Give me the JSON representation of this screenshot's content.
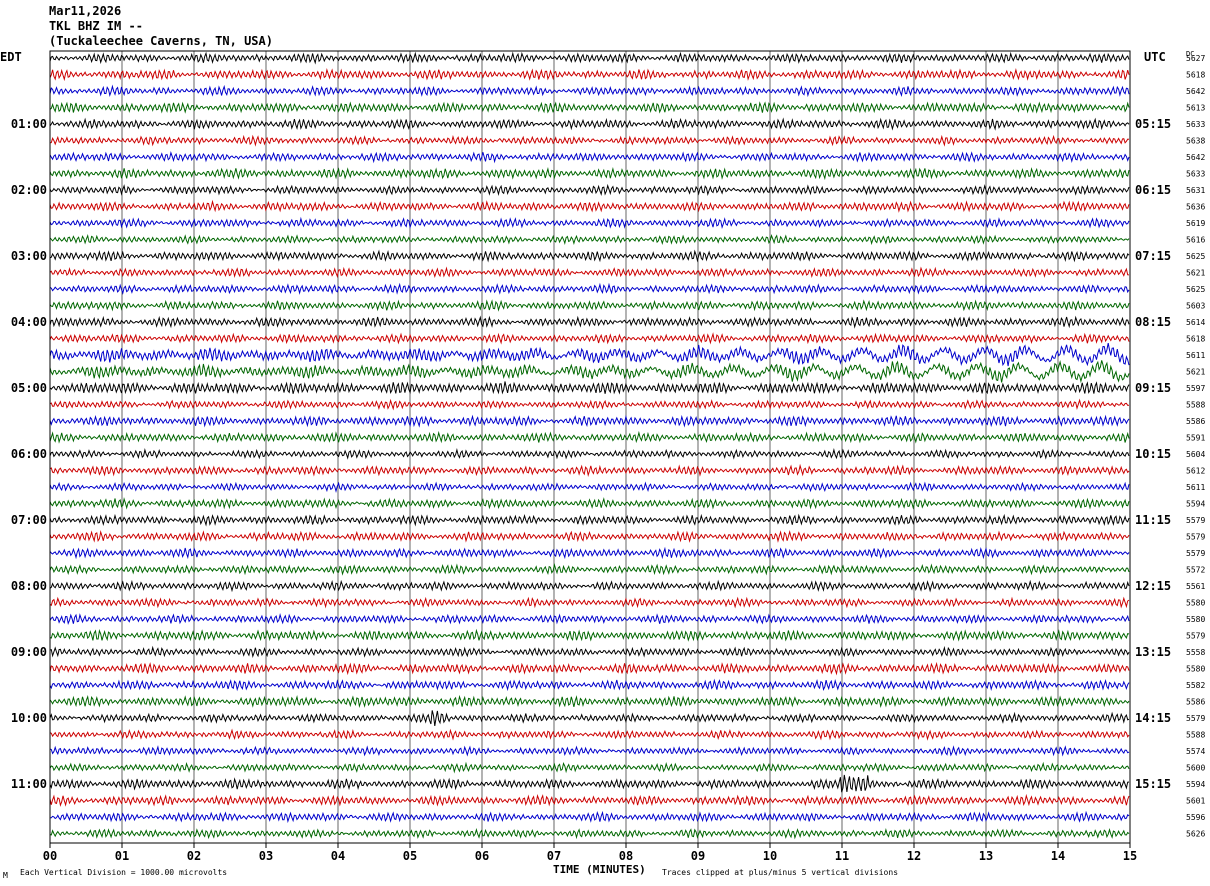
{
  "header": {
    "date": "Mar11,2026",
    "station": "TKL BHZ IM --",
    "location": "(Tuckaleechee Caverns, TN, USA)"
  },
  "left_zone": "EDT",
  "right_zone": "UTC",
  "dc_label": "DC",
  "footer": {
    "scale_note": "Each Vertical Division = 1000.00 microvolts",
    "xlabel": "TIME (MINUTES)",
    "clip_note": "Traces clipped at plus/minus 5 vertical divisions",
    "corner_mark": "M"
  },
  "colors": {
    "trace_cycle": [
      "#000000",
      "#cc0000",
      "#0000cc",
      "#006600"
    ],
    "grid": "#000000"
  },
  "chart_data": {
    "type": "line",
    "title": "",
    "xlabel": "TIME (MINUTES)",
    "x_ticks": [
      "00",
      "01",
      "02",
      "03",
      "04",
      "05",
      "06",
      "07",
      "08",
      "09",
      "10",
      "11",
      "12",
      "13",
      "14",
      "15"
    ],
    "xlim": [
      0,
      15
    ],
    "grid": "vertical lines each minute",
    "rows_per_hour": 4,
    "left_hour_labels": [
      "01:00",
      "02:00",
      "03:00",
      "04:00",
      "05:00",
      "06:00",
      "07:00",
      "08:00",
      "09:00",
      "10:00",
      "11:00"
    ],
    "right_hour_labels": [
      "05:15",
      "06:15",
      "07:15",
      "08:15",
      "09:15",
      "10:15",
      "11:15",
      "12:15",
      "13:15",
      "14:15",
      "15:15"
    ],
    "dc_offsets": [
      5627,
      5618,
      5642,
      5613,
      5633,
      5638,
      5642,
      5633,
      5631,
      5636,
      5619,
      5616,
      5625,
      5621,
      5625,
      5603,
      5614,
      5618,
      5611,
      5621,
      5597,
      5588,
      5586,
      5591,
      5604,
      5612,
      5611,
      5594,
      5579,
      5579,
      5579,
      5572,
      5561,
      5580,
      5580,
      5579,
      5558,
      5580,
      5582,
      5586,
      5579,
      5588,
      5574,
      5600,
      5594,
      5601,
      5596,
      5626
    ]
  }
}
